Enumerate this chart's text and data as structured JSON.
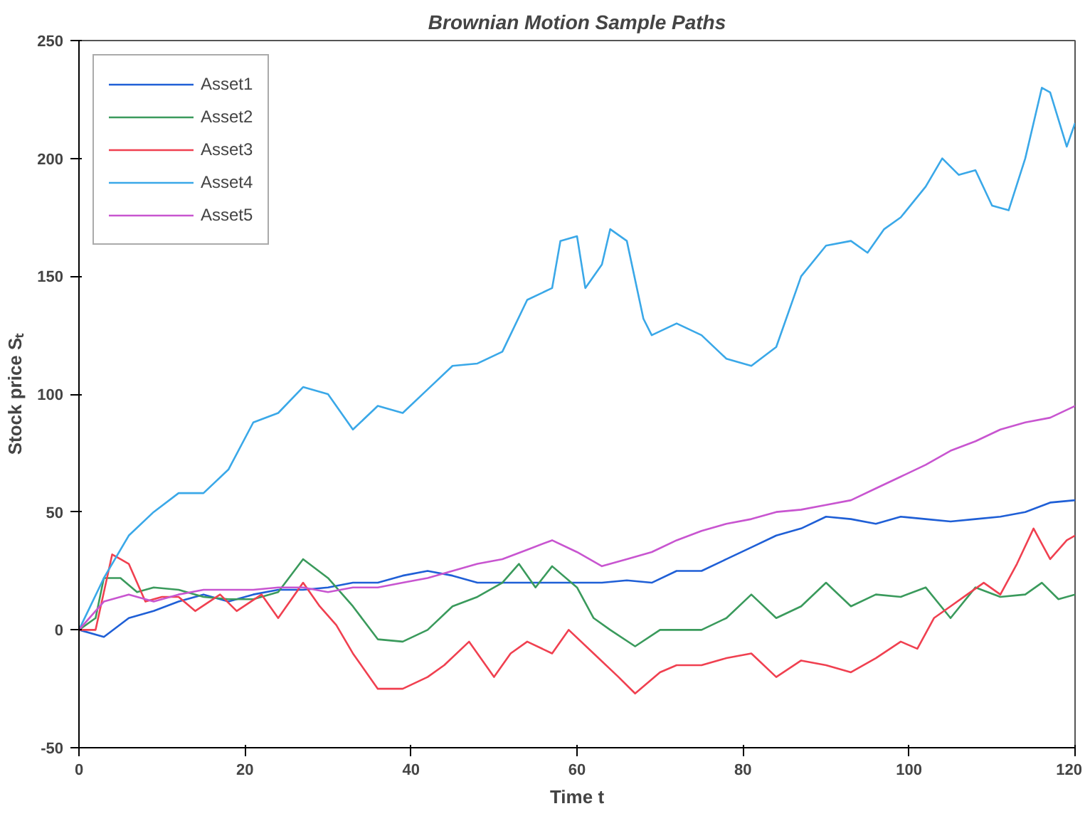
{
  "chart_data": {
    "type": "line",
    "title": "Brownian Motion Sample Paths",
    "xlabel": "Time t",
    "ylabel": "Stock price Sₜ",
    "xlim": [
      0,
      120
    ],
    "ylim": [
      -50,
      250
    ],
    "xticks": [
      0,
      20,
      40,
      60,
      80,
      100,
      120
    ],
    "yticks": [
      -50,
      0,
      50,
      100,
      150,
      200,
      250
    ],
    "grid": false,
    "legend": "top left",
    "marker": "none",
    "line_style": "solid",
    "series": [
      {
        "name": "Asset1",
        "color": "#1f5fd6",
        "x": [
          0,
          3,
          6,
          9,
          12,
          15,
          18,
          21,
          24,
          27,
          30,
          33,
          36,
          39,
          42,
          45,
          48,
          51,
          54,
          57,
          60,
          63,
          66,
          69,
          72,
          75,
          78,
          81,
          84,
          87,
          90,
          93,
          96,
          99,
          102,
          105,
          108,
          111,
          114,
          117,
          120
        ],
        "values": [
          0,
          -3,
          5,
          8,
          12,
          15,
          12,
          15,
          17,
          17,
          18,
          20,
          20,
          23,
          25,
          23,
          20,
          20,
          20,
          20,
          20,
          20,
          21,
          20,
          25,
          25,
          30,
          35,
          40,
          43,
          48,
          47,
          45,
          48,
          47,
          46,
          47,
          48,
          50,
          54,
          55
        ]
      },
      {
        "name": "Asset2",
        "color": "#3a9a5c",
        "x": [
          0,
          2,
          3,
          5,
          7,
          9,
          12,
          15,
          18,
          21,
          24,
          27,
          30,
          33,
          36,
          39,
          42,
          45,
          48,
          51,
          53,
          55,
          57,
          60,
          62,
          64,
          67,
          70,
          75,
          78,
          81,
          84,
          87,
          90,
          93,
          96,
          99,
          102,
          105,
          108,
          111,
          114,
          116,
          118,
          120
        ],
        "values": [
          0,
          5,
          22,
          22,
          16,
          18,
          17,
          14,
          13,
          13,
          16,
          30,
          22,
          10,
          -4,
          -5,
          0,
          10,
          14,
          20,
          28,
          18,
          27,
          18,
          5,
          0,
          -7,
          0,
          0,
          5,
          15,
          5,
          10,
          20,
          10,
          15,
          14,
          18,
          5,
          18,
          14,
          15,
          20,
          13,
          15
        ]
      },
      {
        "name": "Asset3",
        "color": "#f04050",
        "x": [
          0,
          2,
          4,
          5,
          6,
          8,
          10,
          12,
          14,
          17,
          19,
          22,
          24,
          27,
          29,
          31,
          33,
          36,
          39,
          42,
          44,
          47,
          50,
          52,
          54,
          57,
          59,
          62,
          65,
          67,
          70,
          72,
          75,
          78,
          81,
          84,
          87,
          90,
          93,
          96,
          99,
          101,
          103,
          105,
          107,
          109,
          111,
          113,
          115,
          117,
          119,
          120
        ],
        "values": [
          0,
          0,
          32,
          30,
          28,
          12,
          14,
          14,
          8,
          15,
          8,
          15,
          5,
          20,
          10,
          2,
          -10,
          -25,
          -25,
          -20,
          -15,
          -5,
          -20,
          -10,
          -5,
          -10,
          0,
          -10,
          -20,
          -27,
          -18,
          -15,
          -15,
          -12,
          -10,
          -20,
          -13,
          -15,
          -18,
          -12,
          -5,
          -8,
          5,
          10,
          15,
          20,
          15,
          28,
          43,
          30,
          38,
          40
        ]
      },
      {
        "name": "Asset4",
        "color": "#3aa8e8",
        "x": [
          0,
          3,
          6,
          9,
          12,
          15,
          18,
          21,
          24,
          27,
          30,
          33,
          36,
          39,
          42,
          45,
          48,
          51,
          54,
          57,
          58,
          60,
          61,
          63,
          64,
          66,
          68,
          69,
          72,
          75,
          78,
          81,
          84,
          87,
          90,
          93,
          95,
          97,
          99,
          102,
          104,
          106,
          108,
          110,
          112,
          114,
          116,
          117,
          119,
          120
        ],
        "values": [
          0,
          22,
          40,
          50,
          58,
          58,
          68,
          88,
          92,
          103,
          100,
          85,
          95,
          92,
          102,
          112,
          113,
          118,
          140,
          145,
          165,
          167,
          145,
          155,
          170,
          165,
          132,
          125,
          130,
          125,
          115,
          112,
          120,
          150,
          163,
          165,
          160,
          170,
          175,
          188,
          200,
          193,
          195,
          180,
          178,
          200,
          230,
          228,
          205,
          215
        ]
      },
      {
        "name": "Asset5",
        "color": "#c855d0",
        "x": [
          0,
          3,
          6,
          9,
          12,
          15,
          18,
          21,
          24,
          27,
          30,
          33,
          36,
          39,
          42,
          45,
          48,
          51,
          54,
          57,
          60,
          63,
          66,
          69,
          72,
          75,
          78,
          81,
          84,
          87,
          90,
          93,
          96,
          99,
          102,
          105,
          108,
          111,
          114,
          117,
          120
        ],
        "values": [
          0,
          12,
          15,
          12,
          15,
          17,
          17,
          17,
          18,
          18,
          16,
          18,
          18,
          20,
          22,
          25,
          28,
          30,
          34,
          38,
          33,
          27,
          30,
          33,
          38,
          42,
          45,
          47,
          50,
          51,
          53,
          55,
          60,
          65,
          70,
          76,
          80,
          85,
          88,
          90,
          95
        ]
      }
    ]
  }
}
